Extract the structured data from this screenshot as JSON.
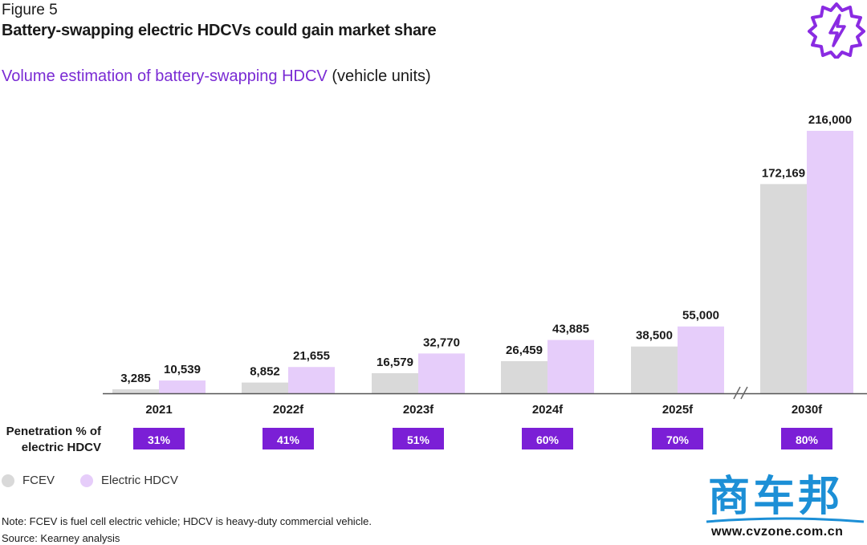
{
  "figure_label": "Figure 5",
  "title": "Battery-swapping electric HDCVs could gain market share",
  "subtitle": {
    "main": "Volume estimation of battery-swapping HDCV",
    "unit": "(vehicle units)"
  },
  "penetration_label_line1": "Penetration % of",
  "penetration_label_line2": "electric HDCV",
  "legend": {
    "fcev": "FCEV",
    "electric": "Electric HDCV"
  },
  "note": "Note: FCEV is fuel cell electric vehicle; HDCV is heavy-duty commercial vehicle.",
  "source": "Source: Kearney analysis",
  "watermark": {
    "chars": "商车邦",
    "url": "www.cvzone.com.cn"
  },
  "colors": {
    "fcev": "#d9d9d9",
    "electric": "#e6cdfa",
    "penetration_box": "#7b1fd6",
    "accent": "#7a2bd4",
    "axis": "#555555"
  },
  "icons": [
    "gear-lightning-icon",
    "legend-dot-icon"
  ],
  "chart_data": {
    "type": "bar",
    "categories": [
      "2021",
      "2022f",
      "2023f",
      "2024f",
      "2025f",
      "2030f"
    ],
    "series": [
      {
        "name": "FCEV",
        "values": [
          3285,
          8852,
          16579,
          26459,
          38500,
          172169
        ]
      },
      {
        "name": "Electric HDCV",
        "values": [
          10539,
          21655,
          32770,
          43885,
          55000,
          216000
        ]
      }
    ],
    "value_labels": {
      "FCEV": [
        "3,285",
        "8,852",
        "16,579",
        "26,459",
        "38,500",
        "172,169"
      ],
      "Electric HDCV": [
        "10,539",
        "21,655",
        "32,770",
        "43,885",
        "55,000",
        "216,000"
      ]
    },
    "penetration": [
      "31%",
      "41%",
      "51%",
      "60%",
      "70%",
      "80%"
    ],
    "axis_break_before": "2030f",
    "title": "Volume estimation of battery-swapping HDCV",
    "ylabel": "",
    "xlabel": "",
    "grid": false,
    "legend_position": "bottom-left"
  }
}
